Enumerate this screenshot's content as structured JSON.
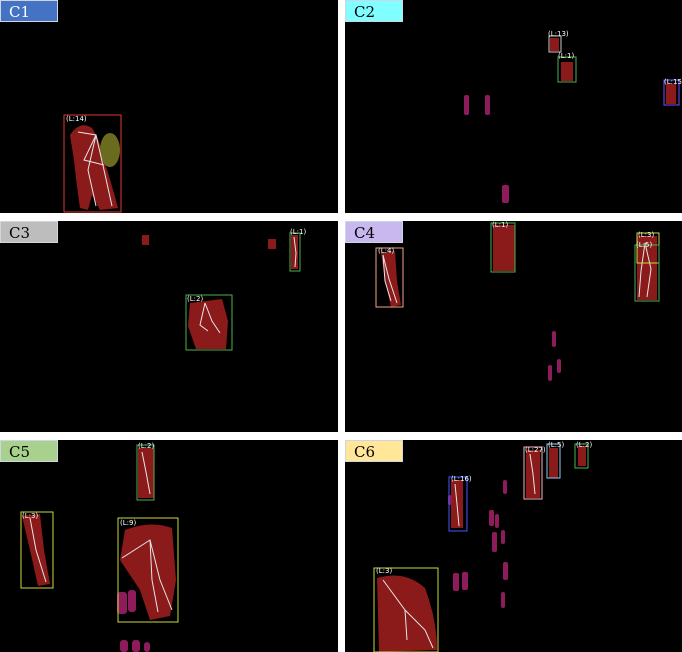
{
  "panels": [
    {
      "label": "C1",
      "label_color": "#4472c4",
      "label_text_color": "#ffffff",
      "tracks": [
        {
          "tag": "(L:14)",
          "color": "#e53935"
        }
      ]
    },
    {
      "label": "C2",
      "label_color": "#7fffff",
      "label_text_color": "#000000",
      "tracks": [
        {
          "tag": "(L:13)",
          "color": "#cccccc"
        },
        {
          "tag": "(L:1)",
          "color": "#4caf50"
        },
        {
          "tag": "(L:15",
          "color": "#7c4dff"
        }
      ]
    },
    {
      "label": "C3",
      "label_color": "#bdbdbd",
      "label_text_color": "#000000",
      "tracks": [
        {
          "tag": "(L:1)",
          "color": "#4caf50"
        },
        {
          "tag": "(L:2)",
          "color": "#4caf50"
        }
      ]
    },
    {
      "label": "C4",
      "label_color": "#c9b8ef",
      "label_text_color": "#000000",
      "tracks": [
        {
          "tag": "(L:4)",
          "color": "#f4a582"
        },
        {
          "tag": "(L:1)",
          "color": "#4caf50"
        },
        {
          "tag": "(L:3)",
          "color": "#cddc39"
        },
        {
          "tag": "(L:5)",
          "color": "#4caf50"
        }
      ]
    },
    {
      "label": "C5",
      "label_color": "#a9d18e",
      "label_text_color": "#000000",
      "tracks": [
        {
          "tag": "(L:2)",
          "color": "#4caf50"
        },
        {
          "tag": "(L:3)",
          "color": "#cddc39"
        },
        {
          "tag": "(L:9)",
          "color": "#cddc39"
        }
      ]
    },
    {
      "label": "C6",
      "label_color": "#ffe699",
      "label_text_color": "#000000",
      "tracks": [
        {
          "tag": "(L:16)",
          "color": "#3d5afe"
        },
        {
          "tag": "(L:27)",
          "color": "#ffb0c0"
        },
        {
          "tag": "(L:5)",
          "color": "#90caf9"
        },
        {
          "tag": "(L:2)",
          "color": "#4caf50"
        },
        {
          "tag": "(L:3)",
          "color": "#cddc39"
        }
      ]
    }
  ]
}
